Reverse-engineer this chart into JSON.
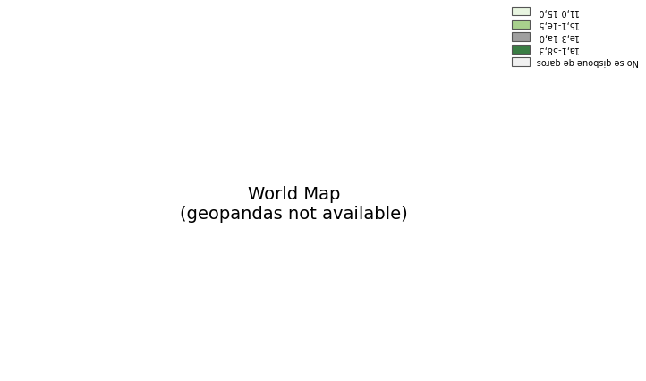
{
  "title": "",
  "legend_labels": [
    "11,0-15,0",
    "15,1-1e,5",
    "1e,3-1a,0",
    "1a,1-58,3",
    "No se qisboue qe qaros"
  ],
  "legend_colors": [
    "#e8f5e0",
    "#a8d08d",
    "#a0a0a0",
    "#3a7d44",
    "#f0f0f0"
  ],
  "legend_title": "",
  "background_color": "#ffffff",
  "edge_color": "#555555",
  "edge_width": 0.4,
  "figsize": [
    7.22,
    4.26
  ],
  "dpi": 100,
  "color_map": {
    "Africa": "#a8d08d",
    "South America": "#a8d08d",
    "North America": "#a8d08d",
    "Europe": "#3a7d44",
    "Asia": "#a0a0a0",
    "Oceania": "#e8f5e0",
    "default": "#f0f0f0"
  }
}
